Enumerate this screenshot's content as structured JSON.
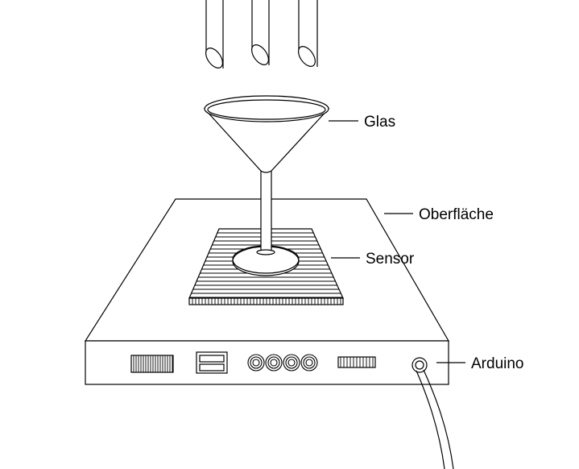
{
  "labels": {
    "glas": "Glas",
    "oberflaeche": "Oberfläche",
    "sensor": "Sensor",
    "arduino": "Arduino"
  },
  "colors": {
    "line": "#000000",
    "background": "#ffffff"
  },
  "components": {
    "nozzle_count": 3,
    "rca_jack_count": 4
  }
}
